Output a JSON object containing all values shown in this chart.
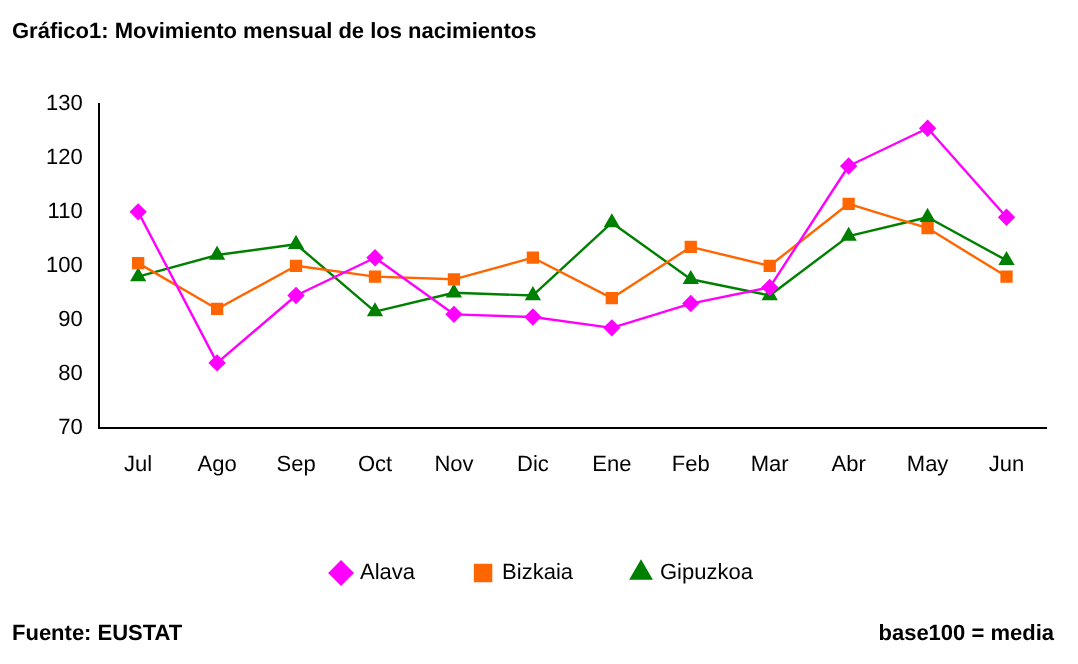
{
  "chart_data": {
    "type": "line",
    "title": "Gráfico1: Movimiento mensual de los nacimientos",
    "categories": [
      "Jul",
      "Ago",
      "Sep",
      "Oct",
      "Nov",
      "Dic",
      "Ene",
      "Feb",
      "Mar",
      "Abr",
      "May",
      "Jun"
    ],
    "series": [
      {
        "name": "Alava",
        "color": "#ff00ff",
        "marker": "diamond",
        "values": [
          110,
          82,
          94.5,
          101.5,
          91,
          90.5,
          88.5,
          93,
          96,
          118.5,
          125.5,
          109
        ]
      },
      {
        "name": "Bizkaia",
        "color": "#ff6600",
        "marker": "square",
        "values": [
          100.5,
          92,
          100,
          98,
          97.5,
          101.5,
          94,
          103.5,
          100,
          111.5,
          107,
          98
        ]
      },
      {
        "name": "Gipuzkoa",
        "color": "#008000",
        "marker": "triangle",
        "values": [
          98,
          102,
          104,
          91.5,
          95,
          94.5,
          108,
          97.5,
          94.5,
          105.5,
          109,
          101
        ]
      }
    ],
    "ylim": [
      70,
      130
    ],
    "yticks": [
      70,
      80,
      90,
      100,
      110,
      120,
      130
    ],
    "grid": false,
    "legend": "bottom",
    "line_style": "solid",
    "annotations": [
      "Fuente: EUSTAT",
      "base100 = media"
    ]
  }
}
